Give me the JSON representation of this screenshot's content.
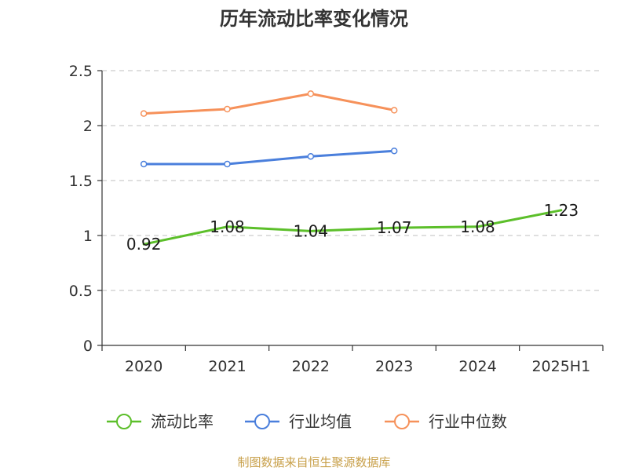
{
  "chart_data": {
    "type": "line",
    "title": "历年流动比率变化情况",
    "categories": [
      "2020",
      "2021",
      "2022",
      "2023",
      "2024",
      "2025H1"
    ],
    "ylim": [
      0,
      2.5
    ],
    "yticks": [
      "0",
      "0.5",
      "1",
      "1.5",
      "2",
      "2.5"
    ],
    "grid": true,
    "legend_position": "bottom",
    "series": [
      {
        "name": "流动比率",
        "color": "#5cbf2a",
        "values": [
          0.92,
          1.08,
          1.04,
          1.07,
          1.08,
          1.23
        ],
        "labels": [
          "0.92",
          "1.08",
          "1.04",
          "1.07",
          "1.08",
          "1.23"
        ]
      },
      {
        "name": "行业均值",
        "color": "#4a7fdc",
        "values": [
          1.65,
          1.65,
          1.72,
          1.77,
          null,
          null
        ]
      },
      {
        "name": "行业中位数",
        "color": "#f6915a",
        "values": [
          2.11,
          2.15,
          2.29,
          2.14,
          null,
          null
        ]
      }
    ]
  },
  "source": "制图数据来自恒生聚源数据库"
}
